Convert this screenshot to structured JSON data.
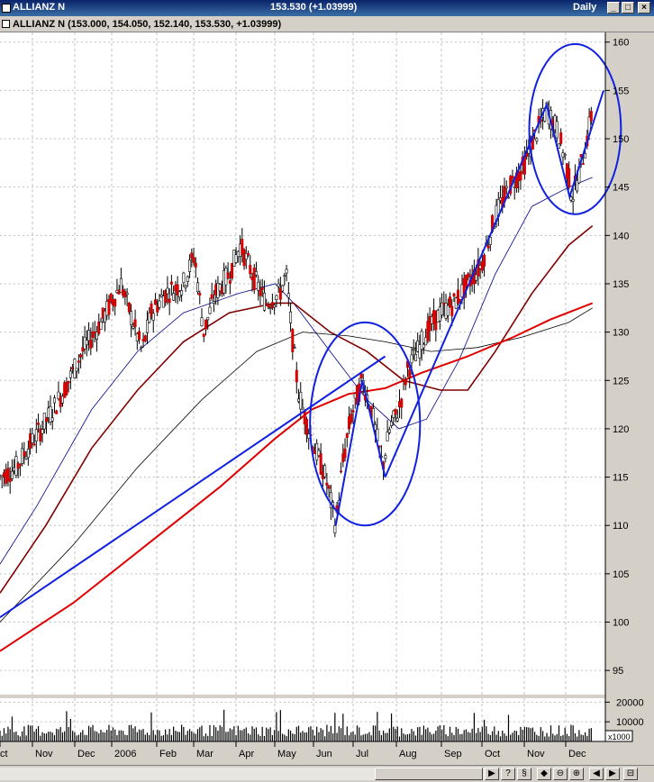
{
  "window": {
    "app_name": "ALLIANZ N",
    "last_value": "153.530 (+1.03999)",
    "period": "Daily",
    "buttons": [
      "_",
      "□",
      "×"
    ]
  },
  "info_line": "ALLIANZ N (153.000, 154.050, 152.140, 153.530, +1.03999)",
  "toolbar_icons": [
    "scroll-left-icon",
    "cursor-icon",
    "period-icon",
    "zoom-out-icon",
    "zoom-in-icon",
    "scroll-left-end-icon",
    "scroll-right-icon",
    "grid-icon"
  ],
  "toolbar_glyphs": [
    "▶",
    "?",
    "§",
    "◆",
    "⊖",
    "⊕",
    "◀",
    "▶",
    "⊟"
  ],
  "chart_data": {
    "type": "candlestick",
    "instrument": "ALLIANZ N",
    "open": 153.0,
    "high": 154.05,
    "low": 152.14,
    "close": 153.53,
    "change": 1.03999,
    "price_axis": {
      "ylim": [
        92.5,
        161
      ],
      "ticks": [
        95,
        100,
        105,
        110,
        115,
        120,
        125,
        130,
        135,
        140,
        145,
        150,
        155,
        160
      ]
    },
    "volume_axis": {
      "ylim": [
        0,
        22000
      ],
      "ticks": [
        10000,
        20000
      ],
      "ticks_labels": [
        "10000",
        "20000"
      ],
      "unit_label": "x1000"
    },
    "x_months": [
      "ct",
      "Nov",
      "Dec",
      "2006",
      "Feb",
      "Mar",
      "Apr",
      "May",
      "Jun",
      "Jul",
      "Aug",
      "Sep",
      "Oct",
      "Nov",
      "Dec"
    ],
    "price_path": [
      [
        0,
        115
      ],
      [
        18,
        116
      ],
      [
        30,
        118
      ],
      [
        45,
        120
      ],
      [
        70,
        124
      ],
      [
        90,
        128
      ],
      [
        110,
        131
      ],
      [
        132,
        135
      ],
      [
        145,
        131
      ],
      [
        155,
        128
      ],
      [
        165,
        132
      ],
      [
        180,
        134
      ],
      [
        200,
        135
      ],
      [
        212,
        138
      ],
      [
        222,
        130
      ],
      [
        235,
        134
      ],
      [
        250,
        136
      ],
      [
        262,
        139
      ],
      [
        275,
        136
      ],
      [
        290,
        133
      ],
      [
        305,
        134
      ],
      [
        312,
        136
      ],
      [
        318,
        130
      ],
      [
        325,
        124
      ],
      [
        333,
        121
      ],
      [
        343,
        118
      ],
      [
        355,
        115
      ],
      [
        366,
        110
      ],
      [
        373,
        116
      ],
      [
        382,
        121
      ],
      [
        395,
        125
      ],
      [
        405,
        122
      ],
      [
        417,
        116
      ],
      [
        425,
        120
      ],
      [
        435,
        122
      ],
      [
        444,
        126
      ],
      [
        455,
        128
      ],
      [
        465,
        130
      ],
      [
        480,
        132
      ],
      [
        495,
        133
      ],
      [
        510,
        135
      ],
      [
        525,
        137
      ],
      [
        540,
        142
      ],
      [
        555,
        145
      ],
      [
        570,
        147
      ],
      [
        582,
        150
      ],
      [
        596,
        153
      ],
      [
        607,
        151
      ],
      [
        616,
        148
      ],
      [
        624,
        144
      ],
      [
        633,
        147
      ],
      [
        640,
        150
      ],
      [
        646,
        153
      ]
    ],
    "moving_averages": [
      {
        "color": "#00008b",
        "points": [
          [
            0,
            106
          ],
          [
            40,
            112
          ],
          [
            100,
            122
          ],
          [
            150,
            128
          ],
          [
            200,
            132
          ],
          [
            260,
            134
          ],
          [
            300,
            135
          ],
          [
            320,
            133
          ],
          [
            360,
            128
          ],
          [
            400,
            123
          ],
          [
            435,
            120
          ],
          [
            465,
            121
          ],
          [
            500,
            127
          ],
          [
            540,
            136
          ],
          [
            580,
            143
          ],
          [
            620,
            145
          ],
          [
            646,
            146
          ]
        ]
      },
      {
        "color": "#800000",
        "points": [
          [
            0,
            103
          ],
          [
            50,
            110
          ],
          [
            100,
            118
          ],
          [
            150,
            124
          ],
          [
            200,
            129
          ],
          [
            250,
            132
          ],
          [
            300,
            133
          ],
          [
            320,
            133
          ],
          [
            360,
            130
          ],
          [
            400,
            128
          ],
          [
            440,
            125
          ],
          [
            480,
            124
          ],
          [
            510,
            124
          ],
          [
            540,
            128
          ],
          [
            580,
            134
          ],
          [
            620,
            139
          ],
          [
            646,
            141
          ]
        ]
      },
      {
        "color": "#000000",
        "points": [
          [
            0,
            100
          ],
          [
            80,
            108
          ],
          [
            150,
            116
          ],
          [
            220,
            123
          ],
          [
            280,
            128
          ],
          [
            330,
            130
          ],
          [
            380,
            129.6
          ],
          [
            420,
            129
          ],
          [
            470,
            128
          ],
          [
            520,
            128.4
          ],
          [
            570,
            129.5
          ],
          [
            620,
            131
          ],
          [
            646,
            132.5
          ]
        ]
      },
      {
        "color": "#e00000",
        "points": [
          [
            0,
            97
          ],
          [
            80,
            102
          ],
          [
            160,
            108
          ],
          [
            240,
            114
          ],
          [
            300,
            119
          ],
          [
            340,
            122
          ],
          [
            380,
            123.6
          ],
          [
            420,
            124.2
          ],
          [
            460,
            125.8
          ],
          [
            510,
            127.5
          ],
          [
            560,
            129.5
          ],
          [
            600,
            131.3
          ],
          [
            646,
            133
          ]
        ]
      }
    ],
    "annotations": {
      "ellipses": [
        {
          "cx_day": 398,
          "cy_price": 120.5,
          "rx_day": 60,
          "ry_price": 10.5
        },
        {
          "cx_day": 627,
          "cy_price": 151,
          "rx_day": 50,
          "ry_price": 8.8
        }
      ],
      "trendlines": [
        [
          [
            0,
            100.5
          ],
          [
            420,
            127.5
          ]
        ],
        [
          [
            420,
            115
          ],
          [
            596,
            153.5
          ],
          [
            621,
            144
          ],
          [
            658,
            155
          ]
        ],
        [
          [
            366,
            110
          ],
          [
            395,
            125
          ],
          [
            420,
            115
          ]
        ]
      ]
    }
  }
}
